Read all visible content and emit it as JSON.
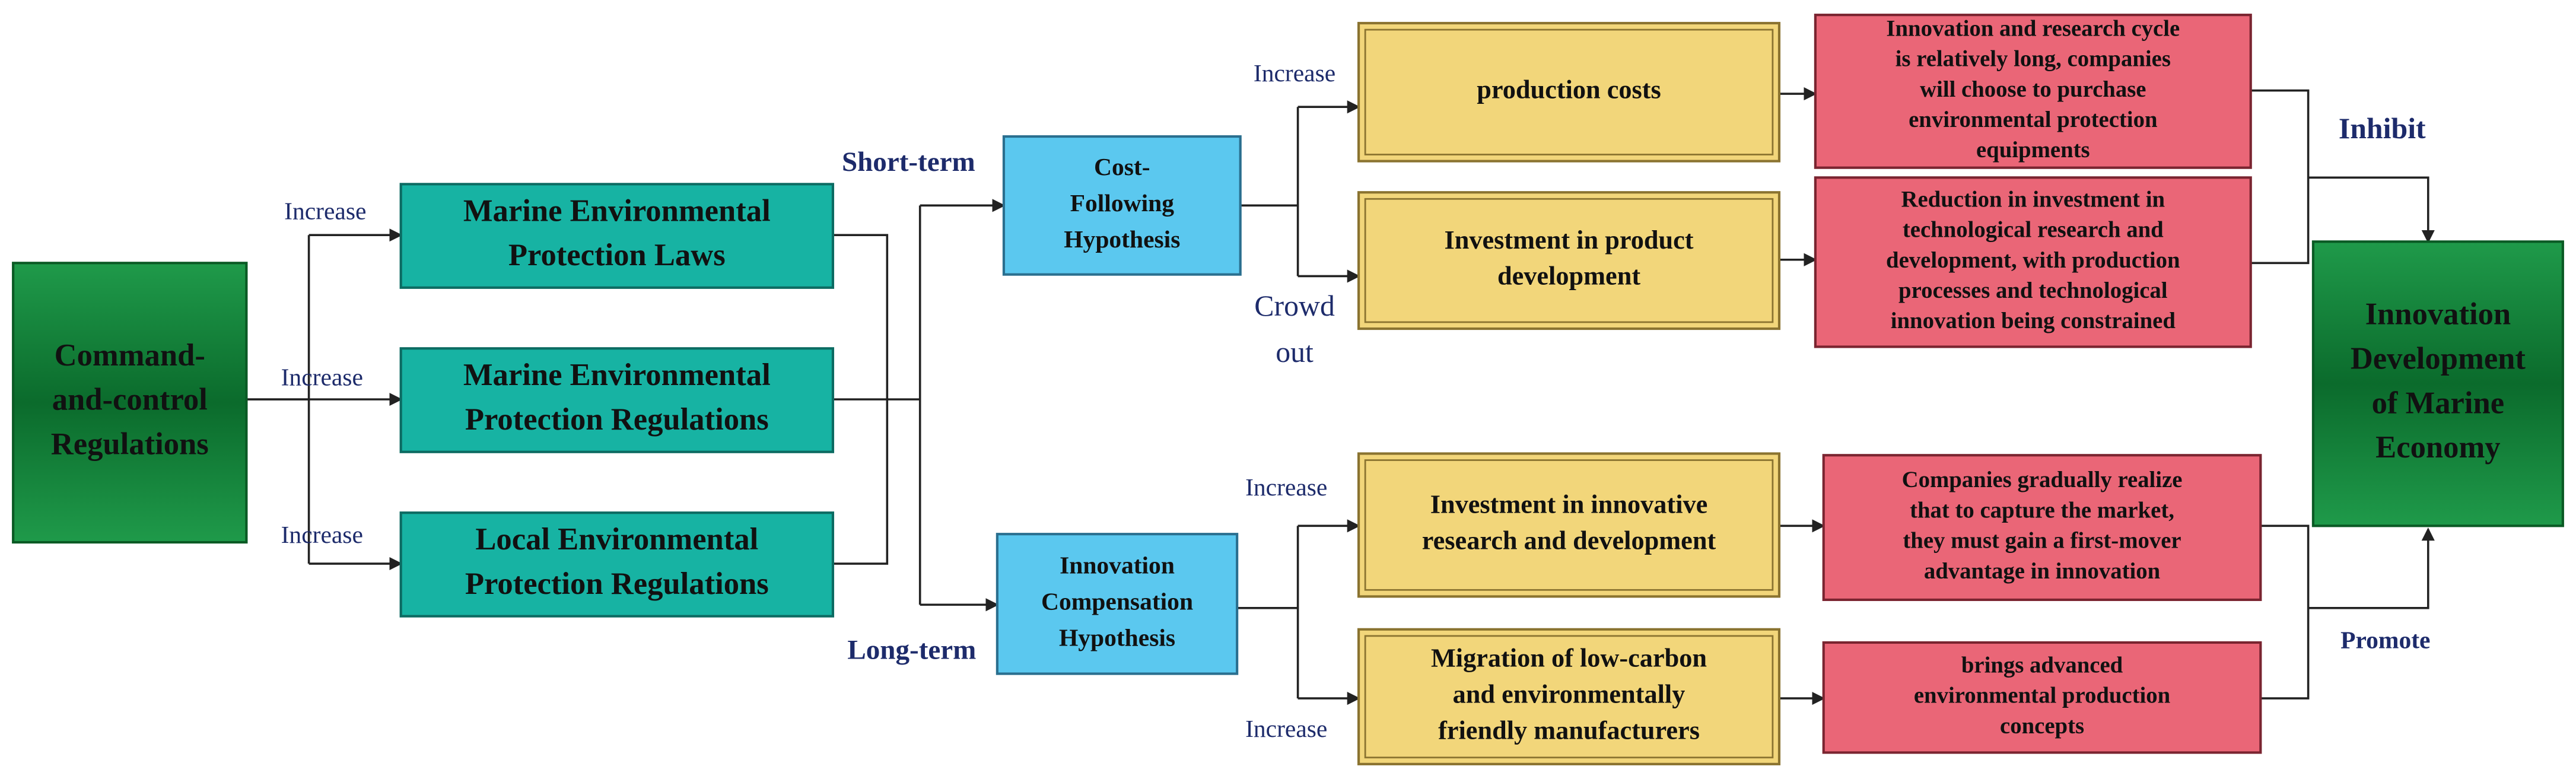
{
  "nodes": [
    {
      "lines": [
        "Command-",
        "and-control",
        "Regulations"
      ]
    },
    {
      "lines": [
        "Marine Environmental",
        "Protection Laws"
      ]
    },
    {
      "lines": [
        "Marine Environmental",
        "Protection Regulations"
      ]
    },
    {
      "lines": [
        "Local Environmental",
        "Protection Regulations"
      ]
    },
    {
      "lines": [
        "Cost-",
        "Following",
        "Hypothesis"
      ]
    },
    {
      "lines": [
        "Innovation",
        "Compensation",
        "Hypothesis"
      ]
    },
    {
      "lines": [
        "production costs"
      ]
    },
    {
      "lines": [
        "Investment in product",
        "development"
      ]
    },
    {
      "lines": [
        "Investment in innovative",
        "research and development"
      ]
    },
    {
      "lines": [
        "Migration of low-carbon",
        "and environmentally",
        "friendly manufacturers"
      ]
    },
    {
      "lines": [
        "Innovation and research cycle",
        "is relatively long, companies",
        "will choose to purchase",
        "environmental protection",
        "equipments"
      ]
    },
    {
      "lines": [
        "Reduction in investment in",
        "technological research and",
        "development, with production",
        "processes and technological",
        "innovation being constrained"
      ]
    },
    {
      "lines": [
        "Companies gradually realize",
        "that to capture the market,",
        "they must gain a first-mover",
        "advantage in innovation"
      ]
    },
    {
      "lines": [
        "brings advanced",
        "environmental production",
        "concepts"
      ]
    },
    {
      "lines": [
        "Innovation",
        "Development",
        "of Marine",
        "Economy"
      ]
    }
  ],
  "labels": [
    "Increase",
    "Increase",
    "Increase",
    "Short-term",
    "Long-term",
    "Increase",
    "Crowd",
    "out",
    "Increase",
    "Increase",
    "Inhibit",
    "Promote"
  ]
}
